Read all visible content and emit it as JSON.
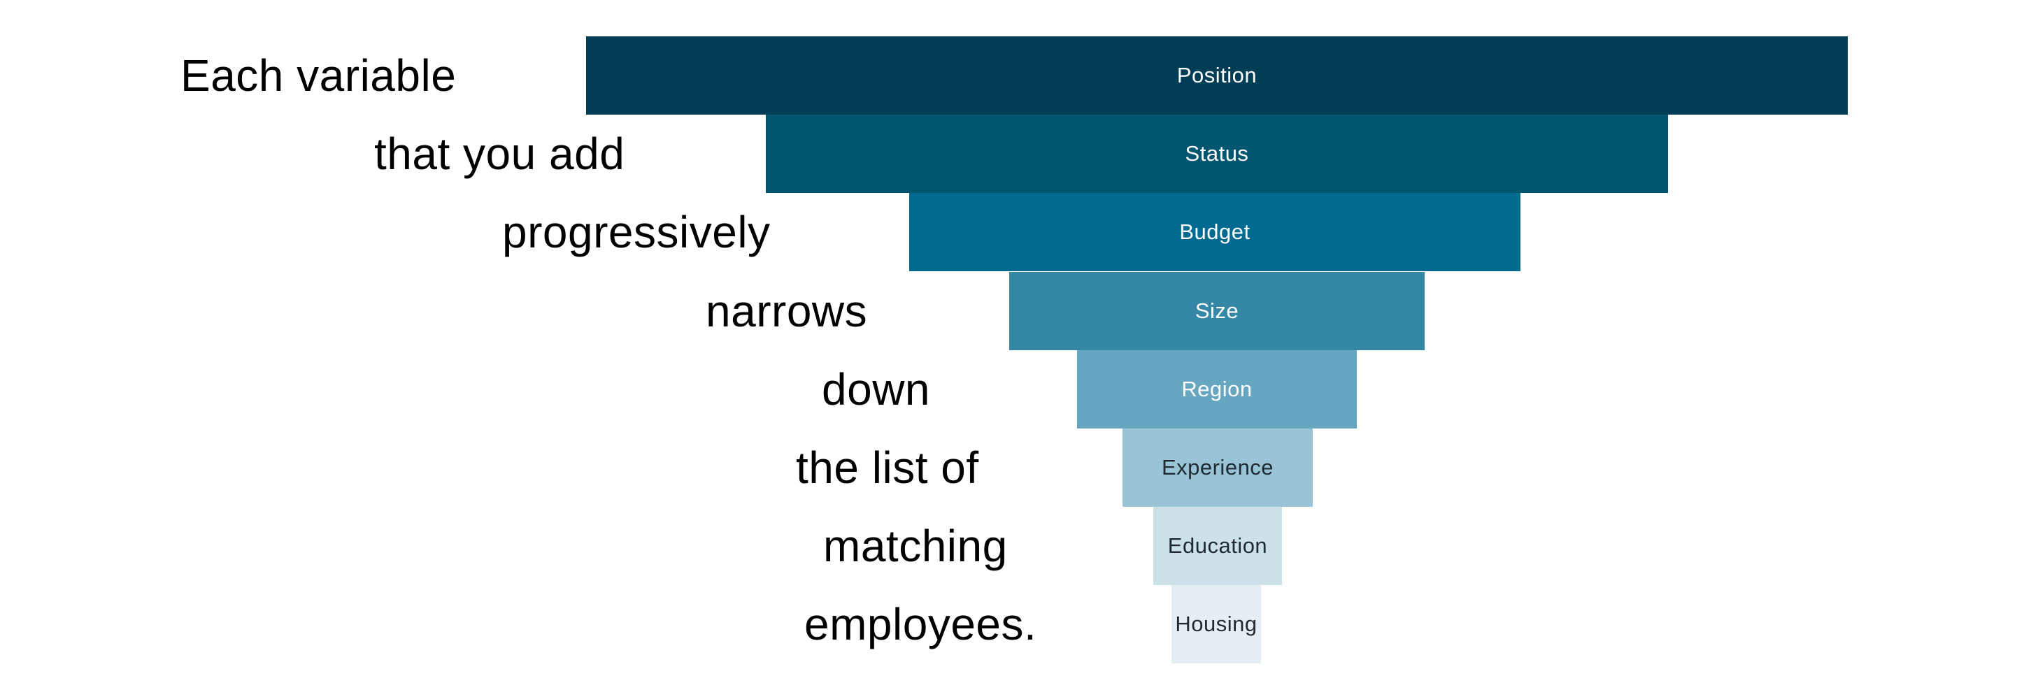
{
  "caption": {
    "lines": [
      "Each variable",
      "that you add",
      "progressively",
      "narrows",
      "down",
      "the list of",
      "matching",
      "employees."
    ]
  },
  "funnel": {
    "stages": [
      {
        "label": "Position",
        "color": "#023d56",
        "text_color": "#ffffff"
      },
      {
        "label": "Status",
        "color": "#03566f",
        "text_color": "#ffffff"
      },
      {
        "label": "Budget",
        "color": "#006a91",
        "text_color": "#ffffff"
      },
      {
        "label": "Size",
        "color": "#3487a7",
        "text_color": "#ffffff"
      },
      {
        "label": "Region",
        "color": "#67a6c1",
        "text_color": "#ffffff"
      },
      {
        "label": "Experience",
        "color": "#99c4d5",
        "text_color": "#1f2a33"
      },
      {
        "label": "Education",
        "color": "#cde1e9",
        "text_color": "#1f2a33"
      },
      {
        "label": "Housing",
        "color": "#e5eef3",
        "text_color": "#1f2a33"
      }
    ]
  }
}
